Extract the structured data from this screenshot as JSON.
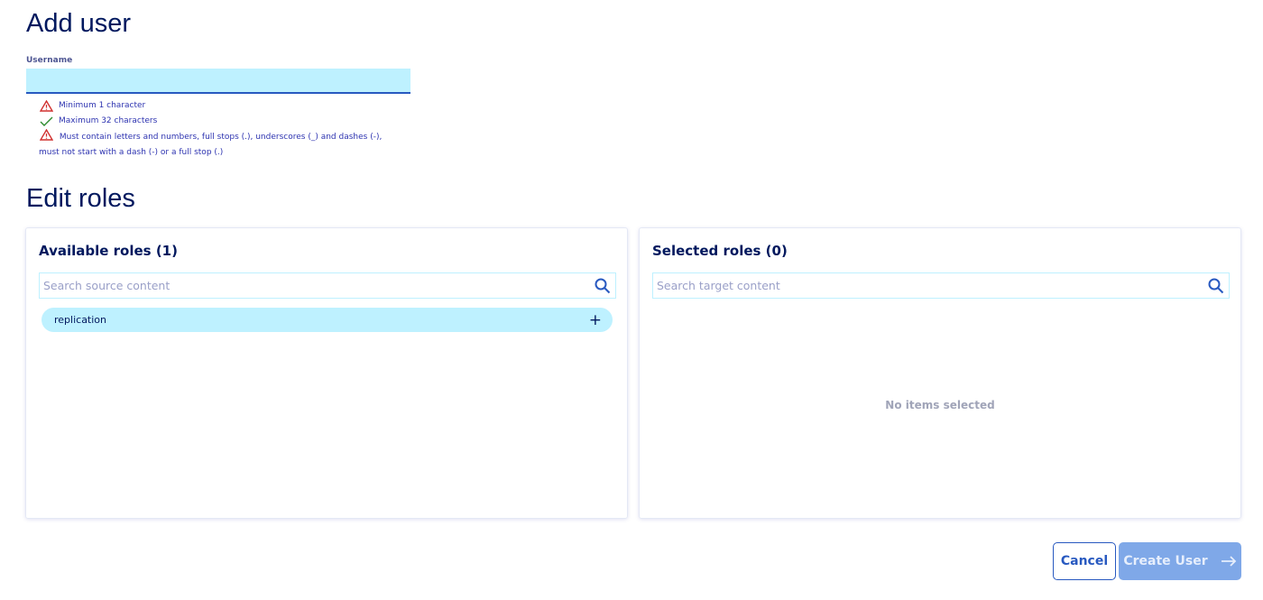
{
  "title": "Add user",
  "username": {
    "label": "Username",
    "value": ""
  },
  "rules": [
    {
      "icon": "warning-icon",
      "status": "error",
      "text": "Minimum 1 character"
    },
    {
      "icon": "check-icon",
      "status": "ok",
      "text": "Maximum 32 characters"
    },
    {
      "icon": "warning-icon",
      "status": "error",
      "text": "Must contain letters and numbers, full stops (.), underscores (_) and dashes (-), must not start with a dash (-) or a full stop (.)"
    }
  ],
  "roles_title": "Edit roles",
  "available": {
    "title": "Available roles (1)",
    "placeholder": "Search source content",
    "items": [
      "replication"
    ]
  },
  "selected": {
    "title": "Selected roles (0)",
    "placeholder": "Search target content",
    "empty": "No items selected"
  },
  "actions": {
    "cancel": "Cancel",
    "create": "Create User"
  },
  "colors": {
    "primary": "#2859c0",
    "disabled": "#7fa8e8",
    "highlight": "#bef1ff",
    "error": "#d0302f",
    "ok": "#2e8b2e"
  }
}
